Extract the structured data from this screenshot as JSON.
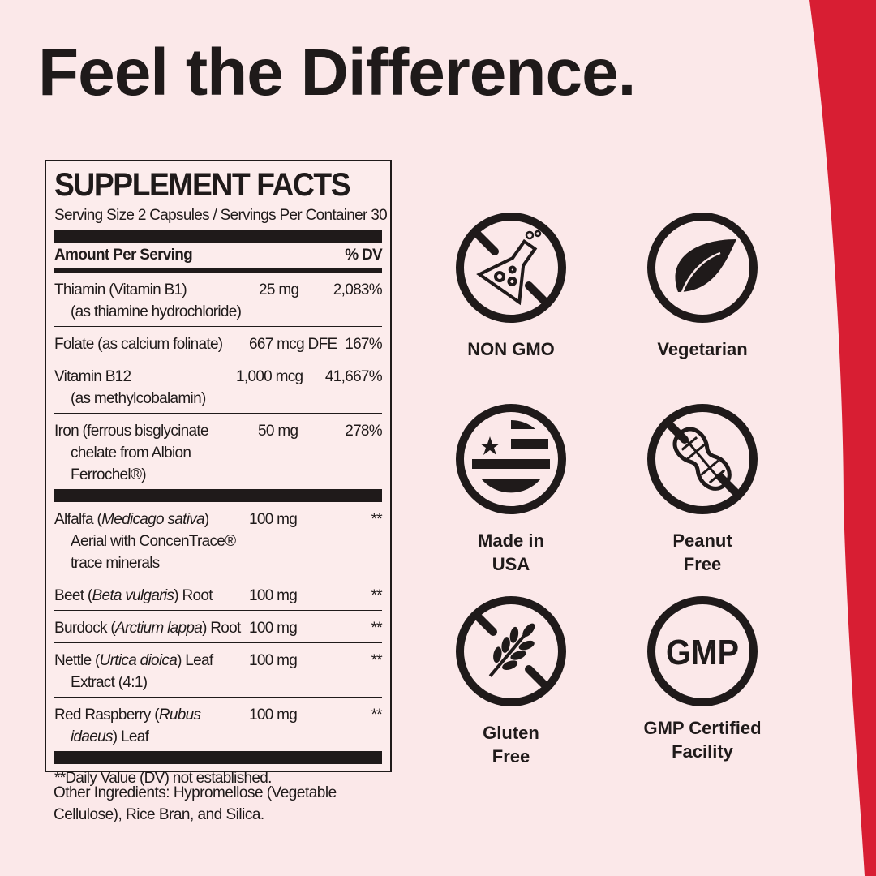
{
  "headline": "Feel the Difference.",
  "colors": {
    "background": "#fbe8e9",
    "accent_red": "#d81e33",
    "ink": "#1f1a1a"
  },
  "supplement_facts": {
    "title": "SUPPLEMENT FACTS",
    "serving": "Serving Size 2 Capsules / Servings Per Container 30",
    "header_amount": "Amount Per Serving",
    "header_dv": "% DV",
    "rows": [
      {
        "name": "Thiamin (Vitamin B1)",
        "sub": "(as thiamine hydrochloride)",
        "amount": "25 mg",
        "dv": "2,083%"
      },
      {
        "name": "Folate (as calcium folinate)",
        "amount": "667 mcg DFE",
        "dv": "167%"
      },
      {
        "name": "Vitamin B12",
        "sub": "(as methylcobalamin)",
        "amount": "1,000 mcg",
        "dv": "41,667%"
      },
      {
        "name": "Iron (ferrous bisglycinate",
        "sub": "chelate from Albion",
        "sub2": "Ferrochel®)",
        "amount": "50 mg",
        "dv": "278%"
      },
      {
        "name": "Alfalfa (",
        "name_italic": "Medicago sativa",
        "name_end": ")",
        "sub": "Aerial with ConcenTrace®",
        "sub2": "trace minerals",
        "amount": "100 mg",
        "dv": "**"
      },
      {
        "name": "Beet (",
        "name_italic": "Beta vulgaris",
        "name_end": ") Root",
        "amount": "100 mg",
        "dv": "**"
      },
      {
        "name": "Burdock (",
        "name_italic": "Arctium lappa",
        "name_end": ") Root",
        "amount": "100 mg",
        "dv": "**"
      },
      {
        "name": "Nettle (",
        "name_italic": "Urtica dioica",
        "name_end": ") Leaf",
        "sub": "Extract (4:1)",
        "amount": "100 mg",
        "dv": "**"
      },
      {
        "name": "Red Raspberry (",
        "name_italic": "Rubus",
        "sub_italic": "idaeus",
        "sub_end": ") Leaf",
        "amount": "100 mg",
        "dv": "**"
      }
    ],
    "footnote": "**Daily Value (DV) not established."
  },
  "other_ingredients": "Other Ingredients: Hypromellose (Vegetable Cellulose), Rice Bran, and Silica.",
  "badges": [
    {
      "icon": "no-gmo-flask-icon",
      "label": "NON GMO"
    },
    {
      "icon": "leaf-icon",
      "label": "Vegetarian"
    },
    {
      "icon": "usa-flag-icon",
      "label_1": "Made in",
      "label_2": "USA"
    },
    {
      "icon": "no-peanut-icon",
      "label_1": "Peanut",
      "label_2": "Free"
    },
    {
      "icon": "no-wheat-icon",
      "label_1": "Gluten",
      "label_2": "Free"
    },
    {
      "icon": "gmp-icon",
      "icon_text": "GMP",
      "label_1": "GMP Certified",
      "label_2": "Facility"
    }
  ]
}
